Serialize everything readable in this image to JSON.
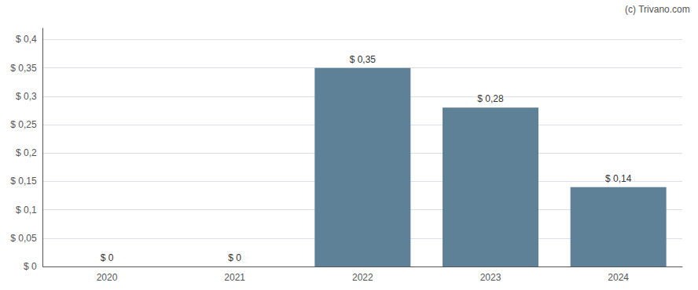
{
  "chart_data": {
    "type": "bar",
    "categories": [
      "2020",
      "2021",
      "2022",
      "2023",
      "2024"
    ],
    "values": [
      0.0,
      0.0,
      0.35,
      0.28,
      0.14
    ],
    "value_labels": [
      "$ 0",
      "$ 0",
      "$ 0,35",
      "$ 0,28",
      "$ 0,14"
    ],
    "data_labels": true,
    "color": "#5f8198",
    "ylim": [
      0,
      0.42
    ],
    "yticks": [
      {
        "value": 0.0,
        "label": "$ 0"
      },
      {
        "value": 0.05,
        "label": "$ 0,05"
      },
      {
        "value": 0.1,
        "label": "$ 0,1"
      },
      {
        "value": 0.15,
        "label": "$ 0,15"
      },
      {
        "value": 0.2,
        "label": "$ 0,2"
      },
      {
        "value": 0.25,
        "label": "$ 0,25"
      },
      {
        "value": 0.3,
        "label": "$ 0,3"
      },
      {
        "value": 0.35,
        "label": "$ 0,35"
      },
      {
        "value": 0.4,
        "label": "$ 0,4"
      }
    ],
    "grid": true,
    "annotations": [
      "(c) Trivano.com"
    ]
  }
}
